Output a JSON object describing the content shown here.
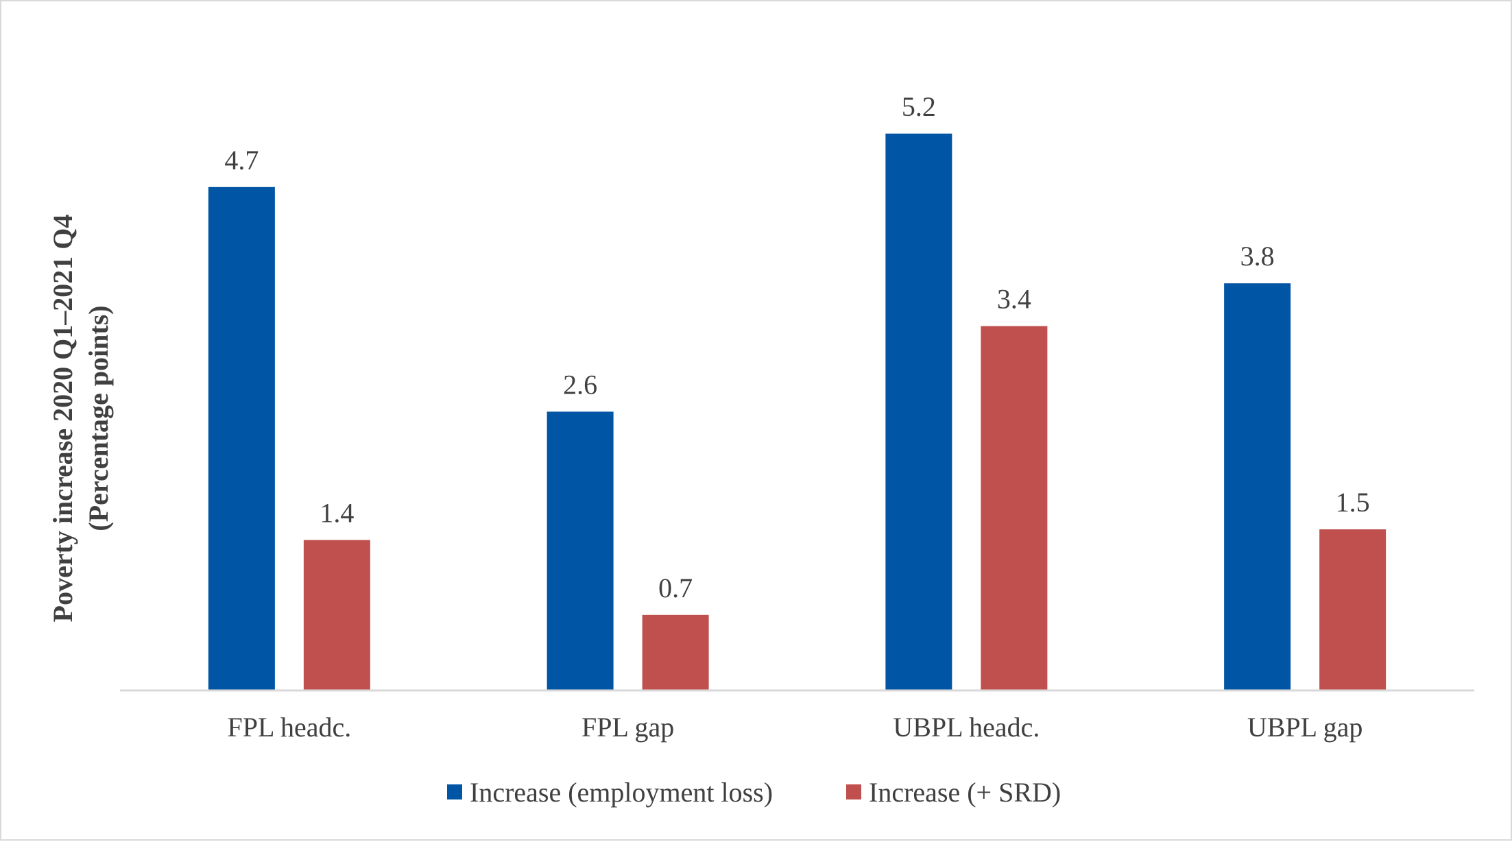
{
  "chart_data": {
    "type": "bar",
    "categories": [
      "FPL headc.",
      "FPL gap",
      "UBPL headc.",
      "UBPL gap"
    ],
    "series": [
      {
        "name": "Increase (employment loss)",
        "values": [
          4.7,
          2.6,
          5.2,
          3.8
        ],
        "color": "#0055a4"
      },
      {
        "name": "Increase (+ SRD)",
        "values": [
          1.4,
          0.7,
          3.4,
          1.5
        ],
        "color": "#c0504d"
      }
    ],
    "ylabel": [
      "Poverty increase 2020 Q1–2021 Q4",
      "(Percentage points)"
    ],
    "xlabel": "",
    "ylim": [
      0,
      5.2
    ],
    "grid": false,
    "legend_position": "bottom",
    "data_labels": true
  }
}
